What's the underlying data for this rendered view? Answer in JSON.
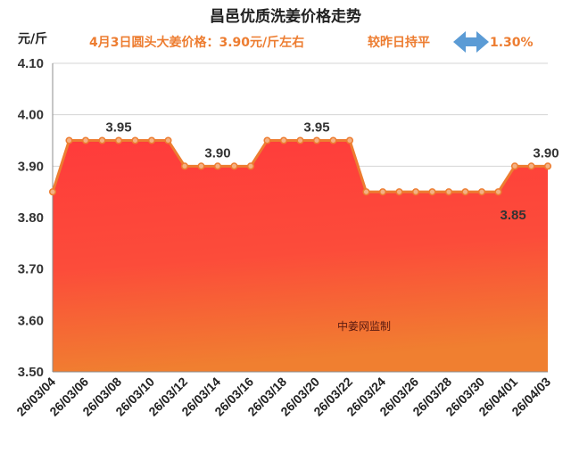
{
  "chart_data": {
    "type": "area",
    "title": "昌邑优质洗姜价格走势",
    "unit_label": "元/斤",
    "subtitle_price": "4月3日圆头大姜价格：3.90元/斤左右",
    "subtitle_change": "较昨日持平",
    "change_percent": "1.30%",
    "watermark": "中姜网监制",
    "ylim": [
      3.5,
      4.1
    ],
    "yticks": [
      "3.50",
      "3.60",
      "3.70",
      "3.80",
      "3.90",
      "4.00",
      "4.10"
    ],
    "grid": true,
    "x": [
      "26/03/04",
      "26/03/05",
      "26/03/06",
      "26/03/07",
      "26/03/08",
      "26/03/09",
      "26/03/10",
      "26/03/11",
      "26/03/12",
      "26/03/13",
      "26/03/14",
      "26/03/15",
      "26/03/16",
      "26/03/17",
      "26/03/18",
      "26/03/19",
      "26/03/20",
      "26/03/21",
      "26/03/22",
      "26/03/23",
      "26/03/24",
      "26/03/25",
      "26/03/26",
      "26/03/27",
      "26/03/28",
      "26/03/29",
      "26/03/30",
      "26/03/31",
      "26/04/01",
      "26/04/02",
      "26/04/03"
    ],
    "xtick_labels": [
      "26/03/04",
      "26/03/06",
      "26/03/08",
      "26/03/10",
      "26/03/12",
      "26/03/14",
      "26/03/16",
      "26/03/18",
      "26/03/20",
      "26/03/22",
      "26/03/24",
      "26/03/26",
      "26/03/28",
      "26/03/30",
      "26/04/01",
      "26/04/03"
    ],
    "values": [
      3.85,
      3.95,
      3.95,
      3.95,
      3.95,
      3.95,
      3.95,
      3.95,
      3.9,
      3.9,
      3.9,
      3.9,
      3.9,
      3.95,
      3.95,
      3.95,
      3.95,
      3.95,
      3.95,
      3.85,
      3.85,
      3.85,
      3.85,
      3.85,
      3.85,
      3.85,
      3.85,
      3.85,
      3.9,
      3.9,
      3.9
    ],
    "data_labels": [
      {
        "index": 4,
        "text": "3.95",
        "pos": "above"
      },
      {
        "index": 10,
        "text": "3.90",
        "pos": "above"
      },
      {
        "index": 16,
        "text": "3.95",
        "pos": "above"
      },
      {
        "index": 27,
        "text": "3.85",
        "pos": "right-below"
      },
      {
        "index": 30,
        "text": "3.90",
        "pos": "above"
      }
    ],
    "colors": {
      "line": "#ED7D31",
      "marker_fill": "#F4B183",
      "fill_top": "#FF3B3B",
      "fill_bottom": "#F07F30",
      "arrow": "#5B9BD5",
      "accent": "#ED7D31"
    }
  }
}
